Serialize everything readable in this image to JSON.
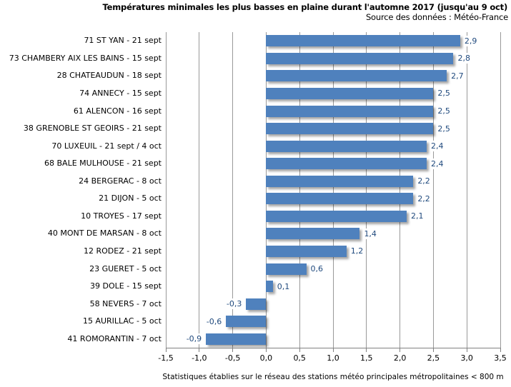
{
  "header": {
    "title": "Températures minimales les plus basses en plaine durant l'automne 2017 (jusqu'au 9 oct)",
    "subtitle": "Source des données : Météo-France"
  },
  "footer": {
    "note": "Statistiques établies sur le réseau des stations météo principales métropolitaines < 800 m"
  },
  "colors": {
    "bar_fill": "#4F81BD",
    "value_label_text": "#1F497D",
    "gridline": "#999999",
    "axis_line": "#808080",
    "text": "#000000",
    "background": "#FFFFFF"
  },
  "chart_data": {
    "type": "bar",
    "orientation": "horizontal",
    "title": "Températures minimales les plus basses en plaine durant l'automne 2017 (jusqu'au 9 oct)",
    "subtitle": "Source des données : Météo-France",
    "footnote": "Statistiques établies sur le réseau des stations météo principales métropolitaines < 800 m",
    "categories": [
      "71 ST YAN - 21 sept",
      "73 CHAMBERY AIX LES BAINS - 15 sept",
      "28 CHATEAUDUN - 18 sept",
      "74 ANNECY - 15 sept",
      "61 ALENCON - 16 sept",
      "38 GRENOBLE ST GEOIRS - 21 sept",
      "70 LUXEUIL - 21 sept / 4 oct",
      "68 BALE MULHOUSE - 21 sept",
      "24 BERGERAC - 8 oct",
      "21 DIJON - 5 oct",
      "10 TROYES - 17 sept",
      "40 MONT DE MARSAN - 8 oct",
      "12 RODEZ - 21 sept",
      "23 GUERET - 5 oct",
      "39 DOLE - 15 sept",
      "58 NEVERS - 7 oct",
      "15 AURILLAC - 5 oct",
      "41 ROMORANTIN - 7 oct"
    ],
    "values": [
      2.9,
      2.8,
      2.7,
      2.5,
      2.5,
      2.5,
      2.4,
      2.4,
      2.2,
      2.2,
      2.1,
      1.4,
      1.2,
      0.6,
      0.1,
      -0.3,
      -0.6,
      -0.9
    ],
    "value_labels": [
      "2,9",
      "2,8",
      "2,7",
      "2,5",
      "2,5",
      "2,5",
      "2,4",
      "2,4",
      "2,2",
      "2,2",
      "2,1",
      "1,4",
      "1,2",
      "0,6",
      "0,1",
      "-0,3",
      "-0,6",
      "-0,9"
    ],
    "xlim": [
      -1.5,
      3.5
    ],
    "x_ticks": [
      -1.5,
      -1.0,
      -0.5,
      0.0,
      0.5,
      1.0,
      1.5,
      2.0,
      2.5,
      3.0,
      3.5
    ],
    "x_tick_labels": [
      "-1,5",
      "-1,0",
      "-0,5",
      "0,0",
      "0,5",
      "1,0",
      "1,5",
      "2,0",
      "2,5",
      "3,0",
      "3,5"
    ],
    "grid": true,
    "legend": false,
    "data_labels": true
  }
}
